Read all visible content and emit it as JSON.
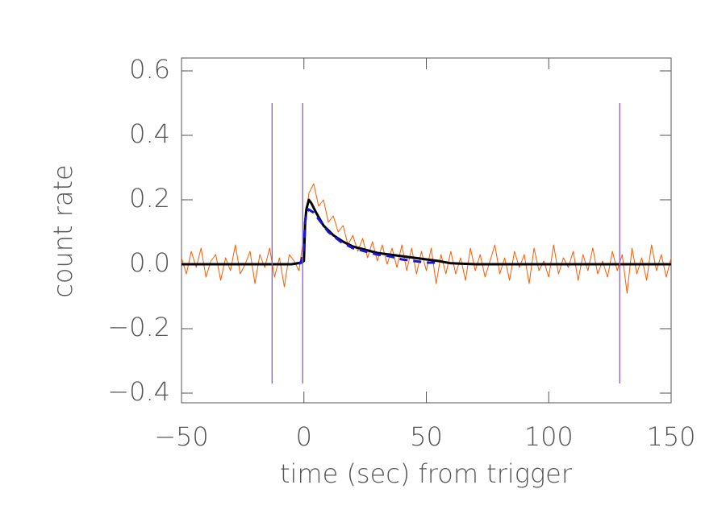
{
  "chart_data": {
    "type": "line",
    "xlabel": "time (sec) from trigger",
    "ylabel": "count rate",
    "xlim": [
      -50,
      150
    ],
    "ylim": [
      -0.43,
      0.64
    ],
    "xticks": [
      {
        "value": -50,
        "label": "−50"
      },
      0,
      50,
      100,
      150
    ],
    "yticks": [
      {
        "value": -0.4,
        "label": "−0.4"
      },
      {
        "value": -0.2,
        "label": "−0.2"
      },
      {
        "value": 0,
        "label": "0.0"
      },
      0.2,
      0.4,
      0.6
    ],
    "series": [
      {
        "color": "#ff5a00",
        "width": 1,
        "x": [
          -50,
          -48,
          -46,
          -44,
          -42,
          -40,
          -38,
          -36,
          -34,
          -32,
          -30,
          -28,
          -26,
          -24,
          -22,
          -20,
          -18,
          -16,
          -14,
          -12,
          -10,
          -8,
          -6,
          -4,
          -2,
          0,
          2,
          4,
          6,
          8,
          10,
          12,
          14,
          16,
          18,
          20,
          22,
          24,
          26,
          28,
          30,
          32,
          34,
          36,
          38,
          40,
          42,
          44,
          46,
          48,
          50,
          52,
          54,
          56,
          58,
          60,
          62,
          64,
          66,
          68,
          70,
          72,
          74,
          76,
          78,
          80,
          82,
          84,
          86,
          88,
          90,
          92,
          94,
          96,
          98,
          100,
          102,
          104,
          106,
          108,
          110,
          112,
          114,
          116,
          118,
          120,
          122,
          124,
          126,
          128,
          130,
          132,
          134,
          136,
          138,
          140,
          142,
          144,
          146,
          148,
          150
        ],
        "values": [
          0.02,
          -0.03,
          0.04,
          -0.01,
          0.05,
          -0.04,
          0.01,
          0.03,
          -0.05,
          0.02,
          -0.02,
          0.06,
          -0.03,
          0.0,
          0.04,
          -0.06,
          0.03,
          -0.01,
          0.05,
          -0.04,
          0.02,
          -0.07,
          0.03,
          0.01,
          -0.02,
          0.09,
          0.22,
          0.25,
          0.18,
          0.2,
          0.13,
          0.15,
          0.1,
          0.12,
          0.06,
          0.09,
          0.04,
          0.08,
          0.02,
          0.07,
          0.01,
          0.06,
          0.0,
          0.05,
          -0.01,
          0.06,
          -0.02,
          0.05,
          -0.03,
          0.04,
          -0.02,
          0.05,
          -0.06,
          0.03,
          -0.03,
          0.04,
          -0.03,
          0.02,
          -0.05,
          0.05,
          -0.02,
          0.03,
          -0.04,
          0.01,
          0.06,
          -0.03,
          0.02,
          -0.05,
          0.04,
          -0.01,
          0.03,
          -0.06,
          0.05,
          -0.02,
          0.01,
          -0.04,
          0.06,
          -0.03,
          0.02,
          -0.01,
          0.04,
          -0.05,
          0.03,
          -0.02,
          0.05,
          -0.03,
          0.01,
          -0.04,
          0.04,
          -0.02,
          0.03,
          -0.09,
          0.05,
          -0.03,
          0.02,
          -0.05,
          0.06,
          -0.02,
          0.03,
          -0.04,
          0.02
        ]
      },
      {
        "color": "#000000",
        "width": 3,
        "x": [
          -50,
          -5,
          -1,
          0,
          0.5,
          1,
          2,
          3,
          5,
          8,
          12,
          16,
          20,
          25,
          30,
          35,
          40,
          45,
          50,
          55,
          60,
          70,
          150
        ],
        "values": [
          0,
          0,
          0.005,
          0.01,
          0.13,
          0.17,
          0.2,
          0.19,
          0.16,
          0.12,
          0.09,
          0.07,
          0.055,
          0.045,
          0.035,
          0.03,
          0.025,
          0.02,
          0.015,
          0.01,
          0.003,
          0.0,
          0
        ]
      },
      {
        "color": "#1515e0",
        "width": 3,
        "dash": true,
        "x": [
          -2,
          -1,
          0,
          0.5,
          1,
          2,
          4,
          7,
          10,
          15,
          20,
          25,
          30,
          35,
          40,
          45,
          50,
          55
        ],
        "values": [
          0,
          0.01,
          0.05,
          0.13,
          0.16,
          0.17,
          0.16,
          0.13,
          0.1,
          0.07,
          0.05,
          0.04,
          0.03,
          0.025,
          0.015,
          0.01,
          0.005,
          0.005
        ]
      }
    ],
    "vlines": {
      "color": "#8a5cc8",
      "x": [
        -13,
        -0.5,
        129
      ],
      "yrange": [
        -0.37,
        0.5
      ]
    }
  }
}
